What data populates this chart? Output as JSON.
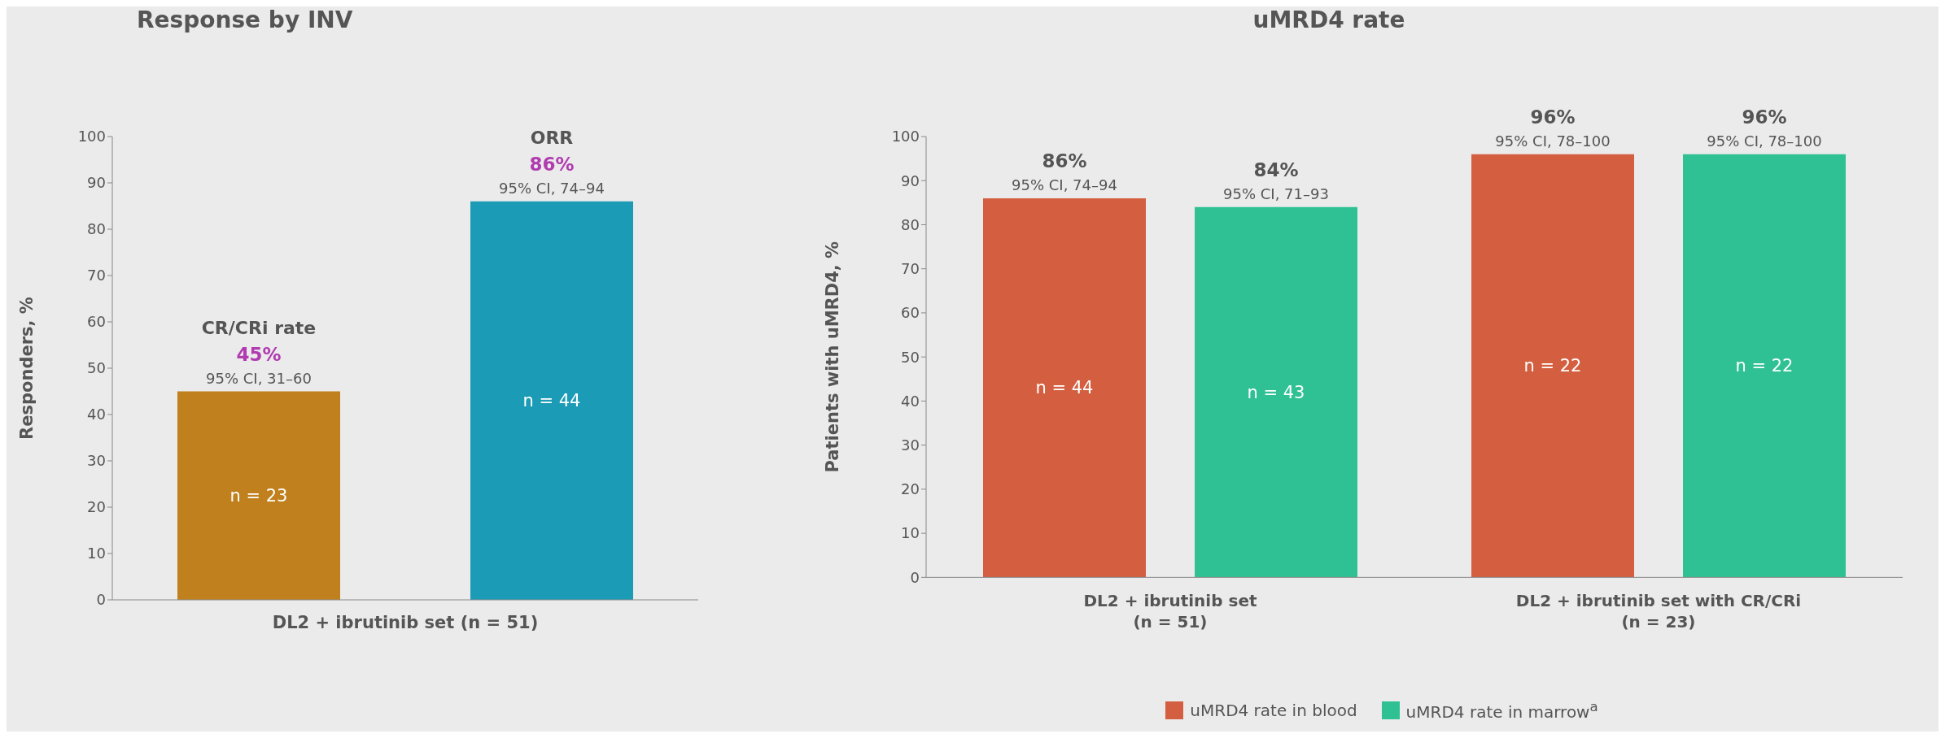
{
  "chart_data": [
    {
      "type": "bar",
      "title": "Response by INV",
      "ylabel": "Responders, %",
      "xlabel": "DL2 + ibrutinib set (n = 51)",
      "categories": [
        "CR/CRi rate",
        "ORR"
      ],
      "values": [
        45,
        86
      ],
      "colors": [
        "#c0801e",
        "#1b9bb5"
      ],
      "value_labels": [
        "45%",
        "86%"
      ],
      "ylim": [
        0,
        100
      ],
      "yticks": [
        0,
        10,
        20,
        30,
        40,
        50,
        60,
        70,
        80,
        90,
        100
      ],
      "tick_labels": "y",
      "annotations": [
        "95% CI, 31–60",
        "n = 23",
        "95% CI, 74–94",
        "n = 44"
      ]
    },
    {
      "type": "bar",
      "title": "uMRD4 rate",
      "ylabel": "Patients with uMRD4, %",
      "categories": [
        "DL2 + ibrutinib set\n(n = 51)",
        "DL2 + ibrutinib set with CR/CRi\n(n = 23)"
      ],
      "ylim": [
        0,
        100
      ],
      "yticks": [
        0,
        10,
        20,
        30,
        40,
        50,
        60,
        70,
        80,
        90,
        100
      ],
      "legend": "bottom",
      "series": [
        {
          "name": "uMRD4 rate in blood",
          "color": "#d45f40",
          "values": [
            86,
            96
          ],
          "value_labels": [
            "86%",
            "96%"
          ]
        },
        {
          "name": "uMRD4 rate in marrow$^{a}$",
          "color": "#2fc193",
          "values": [
            84,
            96
          ],
          "value_labels": [
            "84%",
            "96%"
          ]
        }
      ],
      "annotations": [
        "95% CI, 74–94",
        "n = 44",
        "95% CI, 71–93",
        "n = 43",
        "95% CI, 78–100",
        "n = 22",
        "95% CI, 78–100",
        "n = 22"
      ]
    }
  ]
}
